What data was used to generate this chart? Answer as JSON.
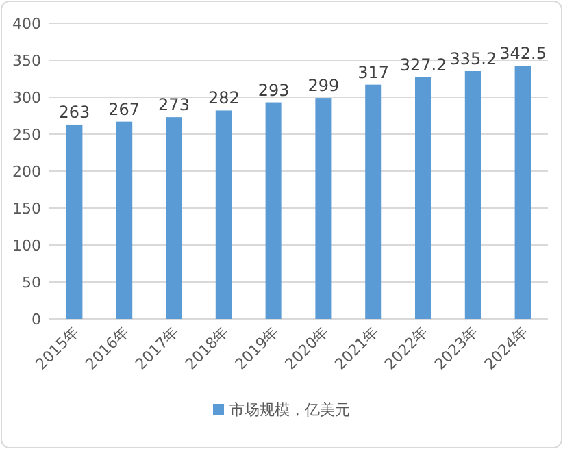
{
  "chart_data": {
    "type": "bar",
    "categories": [
      "2015年",
      "2016年",
      "2017年",
      "2018年",
      "2019年",
      "2020年",
      "2021年",
      "2022年",
      "2023年",
      "2024年"
    ],
    "series": [
      {
        "name": "市场规模，亿美元",
        "color": "#5b9bd5",
        "values": [
          263,
          267,
          273,
          282,
          293,
          299,
          317,
          327.2,
          335.2,
          342.5
        ]
      }
    ],
    "ylim": [
      0,
      400
    ],
    "yticks": [
      0,
      50,
      100,
      150,
      200,
      250,
      300,
      350,
      400
    ],
    "grid": "y",
    "legend": "bottom",
    "data_labels": true
  }
}
